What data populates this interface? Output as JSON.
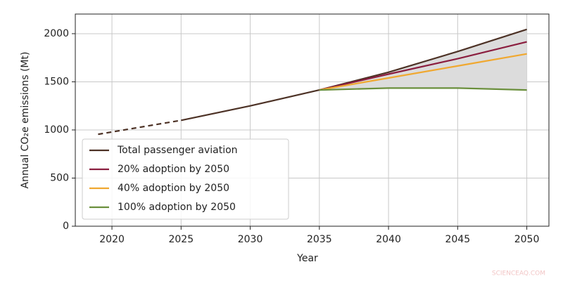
{
  "chart_data": {
    "type": "line",
    "x_label": "Year",
    "y_label": "Annual CO₂e emissions (Mt)",
    "x": [
      2019,
      2025,
      2030,
      2035,
      2040,
      2045,
      2050
    ],
    "series": [
      {
        "name": "Total passenger aviation",
        "color": "#4d3226",
        "values": [
          955,
          1100,
          1250,
          1415,
          1600,
          1815,
          2045
        ],
        "dashed_until": 2025
      },
      {
        "name": "20% adoption by 2050",
        "color": "#8b1e3f",
        "values": [
          null,
          null,
          null,
          1415,
          1580,
          1740,
          1915
        ]
      },
      {
        "name": "40% adoption by 2050",
        "color": "#f0a830",
        "values": [
          null,
          null,
          null,
          1415,
          1540,
          1665,
          1790
        ]
      },
      {
        "name": "100% adoption by 2050",
        "color": "#6a8f3c",
        "values": [
          null,
          null,
          null,
          1415,
          1435,
          1435,
          1415
        ]
      }
    ],
    "shade_between": [
      0,
      3
    ],
    "shade_color": "#dcdcdc",
    "xlim": [
      2017.35,
      2051.6
    ],
    "xticks": [
      2020,
      2025,
      2030,
      2035,
      2040,
      2045,
      2050
    ],
    "ylim": [
      0,
      2204
    ],
    "yticks": [
      0,
      500,
      1000,
      1500,
      2000
    ],
    "grid": true,
    "legend": "lower left",
    "watermark": "SCIENCEAQ.COM"
  }
}
